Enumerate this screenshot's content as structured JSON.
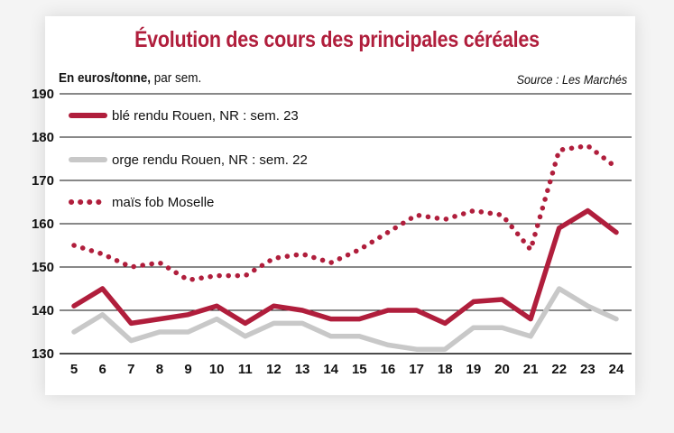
{
  "chart_data": {
    "type": "line",
    "title": "Évolution des cours des principales céréales",
    "unit_bold": "En euros/tonne,",
    "unit_rest": " par sem.",
    "source": "Source : Les Marchés",
    "x": [
      5,
      6,
      7,
      8,
      9,
      10,
      11,
      12,
      13,
      14,
      15,
      16,
      17,
      18,
      19,
      20,
      21,
      22,
      23,
      24
    ],
    "ylim": [
      130,
      190
    ],
    "yticks": [
      130,
      140,
      150,
      160,
      170,
      180,
      190
    ],
    "grid": true,
    "legend_position": "top-left",
    "series": [
      {
        "name": "blé rendu Rouen, NR : sem. 23",
        "color": "#b01e3c",
        "style": "solid",
        "values": [
          141,
          145,
          137,
          138,
          139,
          141,
          137,
          141,
          140,
          138,
          138,
          140,
          140,
          137,
          142,
          142.5,
          138,
          159,
          163,
          158
        ]
      },
      {
        "name": "orge rendu Rouen, NR : sem. 22",
        "color": "#c8c8c8",
        "style": "solid",
        "values": [
          135,
          139,
          133,
          135,
          135,
          138,
          134,
          137,
          137,
          134,
          134,
          132,
          131,
          131,
          136,
          136,
          134,
          145,
          141,
          138
        ]
      },
      {
        "name": "maïs fob Moselle",
        "color": "#b01e3c",
        "style": "dotted",
        "values": [
          155,
          153,
          150,
          151,
          147,
          148,
          148,
          152,
          153,
          151,
          154,
          158,
          162,
          161,
          163,
          162,
          154,
          177,
          178,
          173
        ]
      }
    ]
  }
}
